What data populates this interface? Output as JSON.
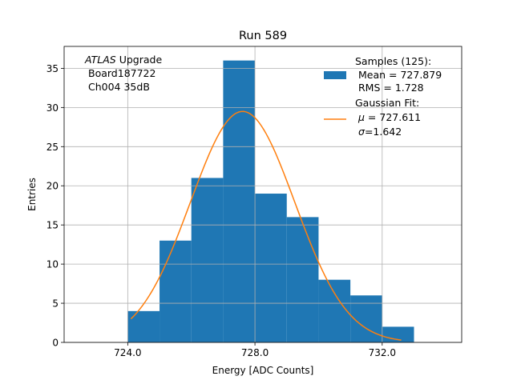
{
  "chart_data": {
    "type": "bar",
    "title": "Run 589",
    "xlabel": "Energy [ADC Counts]",
    "ylabel": "Entries",
    "xlim": [
      722.0,
      734.5
    ],
    "ylim": [
      0,
      37.8
    ],
    "grid": true,
    "x_ticks": [
      724.0,
      728.0,
      732.0
    ],
    "x_tick_labels": [
      "724.0",
      "728.0",
      "732.0"
    ],
    "y_ticks": [
      0,
      5,
      10,
      15,
      20,
      25,
      30,
      35
    ],
    "y_tick_labels": [
      "0",
      "5",
      "10",
      "15",
      "20",
      "25",
      "30",
      "35"
    ],
    "bins": [
      {
        "x0": 724.0,
        "x1": 725.0,
        "count": 4
      },
      {
        "x0": 725.0,
        "x1": 726.0,
        "count": 13
      },
      {
        "x0": 726.0,
        "x1": 727.0,
        "count": 21
      },
      {
        "x0": 727.0,
        "x1": 728.0,
        "count": 36
      },
      {
        "x0": 728.0,
        "x1": 729.0,
        "count": 19
      },
      {
        "x0": 729.0,
        "x1": 730.0,
        "count": 16
      },
      {
        "x0": 730.0,
        "x1": 731.0,
        "count": 8
      },
      {
        "x0": 731.0,
        "x1": 732.0,
        "count": 6
      },
      {
        "x0": 732.0,
        "x1": 733.0,
        "count": 2
      }
    ],
    "fit": {
      "type": "gaussian",
      "mu": 727.611,
      "sigma": 1.642,
      "amplitude": 29.5,
      "x_range": [
        724.1,
        732.6
      ]
    },
    "colors": {
      "bars": "#1f77b4",
      "fit": "#ff7f0e",
      "grid": "#b0b0b0"
    },
    "annotation": {
      "line1_italic": "ATLAS",
      "line1_rest": " Upgrade",
      "line2": "Board187722",
      "line3": "Ch004 35dB"
    },
    "legend": {
      "placement": "top-right",
      "samples_line1": "Samples (125):",
      "samples_line2": "Mean = 727.879",
      "samples_line3": "RMS = 1.728",
      "fit_line1": "Gaussian Fit:",
      "fit_mu_symbol": "μ",
      "fit_mu_value": " = 727.611",
      "fit_sigma_symbol": "σ",
      "fit_sigma_value": "=1.642"
    }
  }
}
